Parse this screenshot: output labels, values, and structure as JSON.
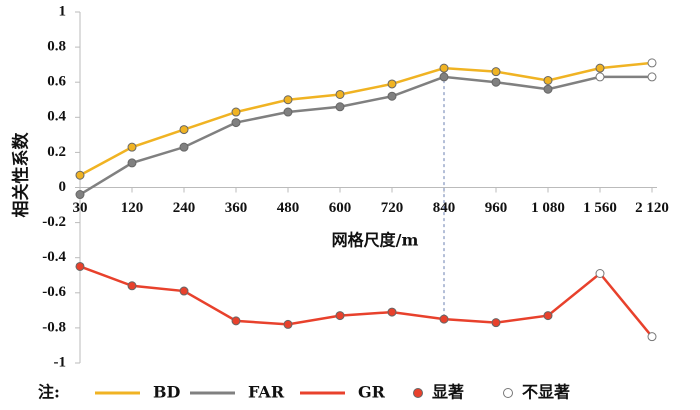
{
  "chart_data": {
    "type": "line",
    "x_label": "网格尺度/m",
    "y_label": "相关性系数",
    "categories": [
      "30",
      "120",
      "240",
      "360",
      "480",
      "600",
      "720",
      "840",
      "960",
      "1 080",
      "1 560",
      "2 120"
    ],
    "series": [
      {
        "name": "BD",
        "color": "#f0b323",
        "values": [
          0.07,
          0.23,
          0.33,
          0.43,
          0.5,
          0.53,
          0.59,
          0.68,
          0.66,
          0.61,
          0.68,
          0.71
        ],
        "significant": [
          true,
          true,
          true,
          true,
          true,
          true,
          true,
          true,
          true,
          true,
          true,
          false
        ]
      },
      {
        "name": "FAR",
        "color": "#808080",
        "values": [
          -0.04,
          0.14,
          0.23,
          0.37,
          0.43,
          0.46,
          0.52,
          0.63,
          0.6,
          0.56,
          0.63,
          0.63
        ],
        "significant": [
          true,
          true,
          true,
          true,
          true,
          true,
          true,
          true,
          true,
          true,
          false,
          false
        ]
      },
      {
        "name": "GR",
        "color": "#e8412c",
        "values": [
          -0.45,
          -0.56,
          -0.59,
          -0.76,
          -0.78,
          -0.73,
          -0.71,
          -0.75,
          -0.77,
          -0.73,
          -0.49,
          -0.85
        ],
        "significant": [
          true,
          true,
          true,
          true,
          true,
          true,
          true,
          true,
          true,
          true,
          false,
          false
        ]
      }
    ],
    "ylim": [
      -1,
      1
    ],
    "yticks": [
      1,
      0.8,
      0.6,
      0.4,
      0.2,
      0,
      -0.2,
      -0.4,
      -0.6,
      -0.8,
      -1
    ],
    "legend": {
      "prefix": "注:",
      "significant": "显著",
      "not_significant": "不显著"
    }
  }
}
